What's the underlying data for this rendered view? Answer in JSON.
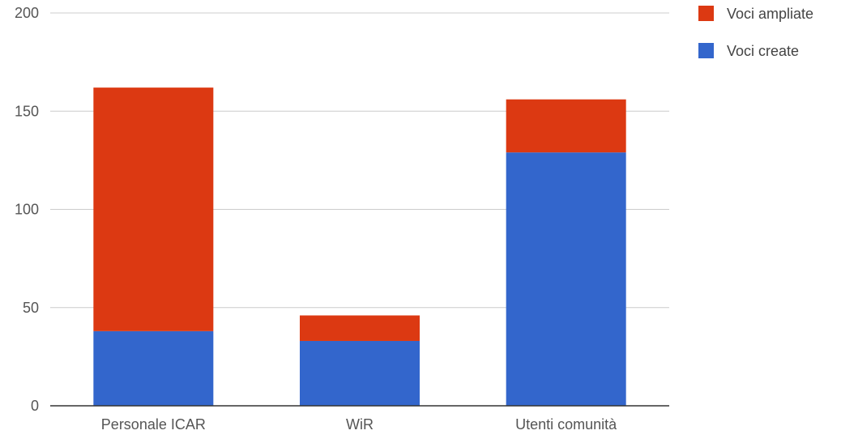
{
  "chart_data": {
    "type": "bar",
    "stacked": true,
    "categories": [
      "Personale ICAR",
      "WiR",
      "Utenti comunità"
    ],
    "series": [
      {
        "name": "Voci create",
        "values": [
          38,
          33,
          129
        ],
        "color": "#3366cc"
      },
      {
        "name": "Voci ampliate",
        "values": [
          124,
          13,
          27
        ],
        "color": "#dc3912"
      }
    ],
    "title": "",
    "xlabel": "",
    "ylabel": "",
    "ylim": [
      0,
      200
    ],
    "yticks": [
      0,
      50,
      100,
      150,
      200
    ],
    "grid": true,
    "legend_position": "top-right"
  }
}
